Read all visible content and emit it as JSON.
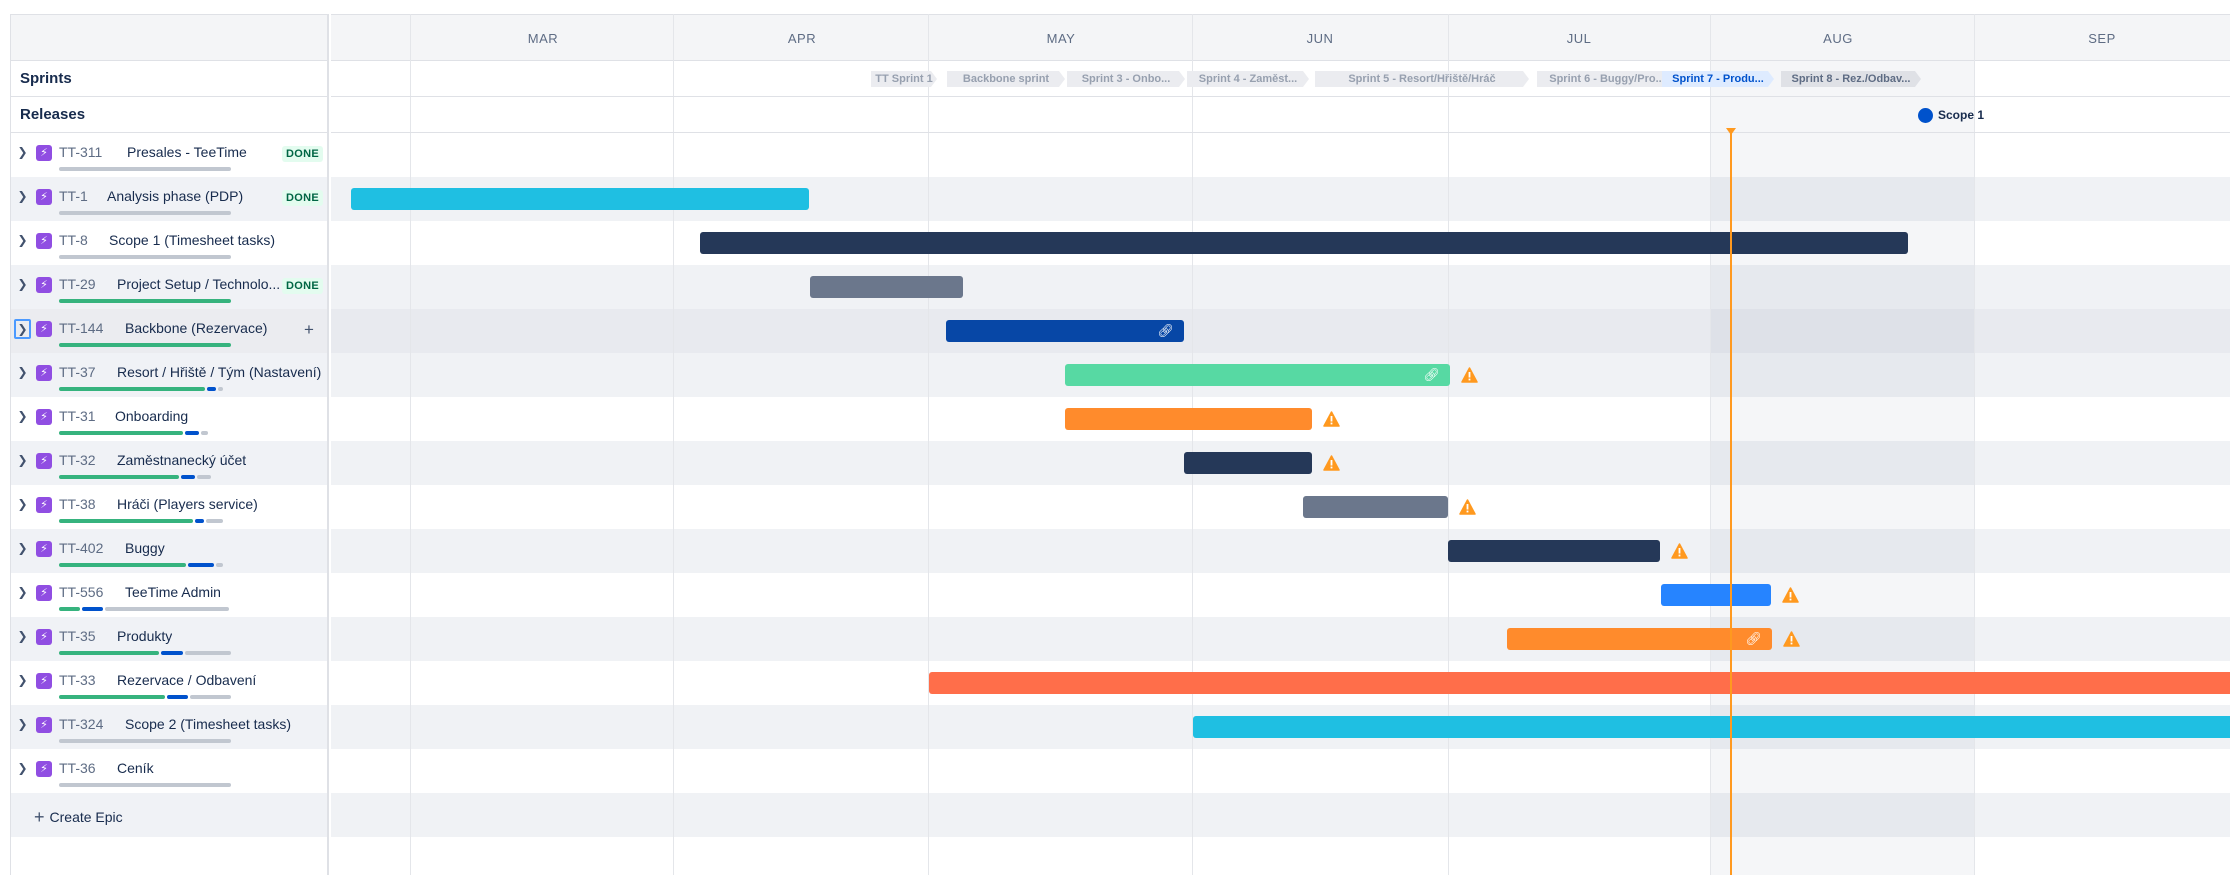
{
  "months": [
    "MAR",
    "APR",
    "MAY",
    "JUN",
    "JUL",
    "AUG",
    "SEP"
  ],
  "sections": {
    "sprints": "Sprints",
    "releases": "Releases"
  },
  "sprints": [
    {
      "label": "TT Sprint 1",
      "state": "closed"
    },
    {
      "label": "Backbone sprint",
      "state": "closed"
    },
    {
      "label": "Sprint 3 - Onbo...",
      "state": "closed"
    },
    {
      "label": "Sprint 4 - Zaměst...",
      "state": "closed"
    },
    {
      "label": "Sprint 5 - Resort/Hřiště/Hráč",
      "state": "closed"
    },
    {
      "label": "Sprint 6 - Buggy/Pro...",
      "state": "closed"
    },
    {
      "label": "Sprint 7 - Produ...",
      "state": "active"
    },
    {
      "label": "Sprint 8 - Rez./Odbav...",
      "state": "future"
    }
  ],
  "release": {
    "label": "Scope 1",
    "color": "#0052cc"
  },
  "epics": [
    {
      "key": "TT-311",
      "title": "Presales - TeeTime",
      "status": "DONE",
      "progress": [
        0,
        0,
        1
      ],
      "bar_color": "",
      "link": false,
      "warning": false
    },
    {
      "key": "TT-1",
      "title": "Analysis phase (PDP)",
      "status": "DONE",
      "progress": [
        0,
        0,
        1
      ],
      "bar_color": "#1fbfe2",
      "link": false,
      "warning": false
    },
    {
      "key": "TT-8",
      "title": "Scope 1 (Timesheet tasks)",
      "status": "",
      "progress": [
        0,
        0,
        1
      ],
      "bar_color": "#253858",
      "link": false,
      "warning": false
    },
    {
      "key": "TT-29",
      "title": "Project Setup / Technolo...",
      "status": "DONE",
      "progress": [
        1,
        0,
        0
      ],
      "bar_color": "#6b778c",
      "link": false,
      "warning": false
    },
    {
      "key": "TT-144",
      "title": "Backbone (Rezervace)",
      "status": "",
      "progress": [
        1,
        0,
        0
      ],
      "bar_color": "#0747a6",
      "link": true,
      "warning": false
    },
    {
      "key": "TT-37",
      "title": "Resort / Hřiště / Tým (Nastavení)",
      "status": "",
      "progress": [
        0.85,
        0.05,
        0.03
      ],
      "bar_color": "#57d9a3",
      "link": true,
      "warning": true
    },
    {
      "key": "TT-31",
      "title": "Onboarding",
      "status": "",
      "progress": [
        0.72,
        0.08,
        0.04
      ],
      "bar_color": "#ff8b2c",
      "link": false,
      "warning": true
    },
    {
      "key": "TT-32",
      "title": "Zaměstnanecký účet",
      "status": "",
      "progress": [
        0.7,
        0.08,
        0.08
      ],
      "bar_color": "#253858",
      "link": false,
      "warning": true
    },
    {
      "key": "TT-38",
      "title": "Hráči (Players service)",
      "status": "",
      "progress": [
        0.78,
        0.05,
        0.1
      ],
      "bar_color": "#6b778c",
      "link": false,
      "warning": true
    },
    {
      "key": "TT-402",
      "title": "Buggy",
      "status": "",
      "progress": [
        0.74,
        0.15,
        0.04
      ],
      "bar_color": "#253858",
      "link": false,
      "warning": true
    },
    {
      "key": "TT-556",
      "title": "TeeTime Admin",
      "status": "",
      "progress": [
        0.12,
        0.12,
        0.72
      ],
      "bar_color": "#2684ff",
      "link": false,
      "warning": true
    },
    {
      "key": "TT-35",
      "title": "Produkty",
      "status": "",
      "progress": [
        0.58,
        0.13,
        0.27
      ],
      "bar_color": "#ff8b2c",
      "link": true,
      "warning": true
    },
    {
      "key": "TT-33",
      "title": "Rezervace / Odbavení",
      "status": "",
      "progress": [
        0.62,
        0.12,
        0.24
      ],
      "bar_color": "#ff6e4a",
      "link": false,
      "warning": false
    },
    {
      "key": "TT-324",
      "title": "Scope 2 (Timesheet tasks)",
      "status": "",
      "progress": [
        0,
        0,
        1
      ],
      "bar_color": "#1fbfe2",
      "link": false,
      "warning": false
    },
    {
      "key": "TT-36",
      "title": "Ceník",
      "status": "",
      "progress": [
        0,
        0,
        1
      ],
      "bar_color": "",
      "link": false,
      "warning": false
    }
  ],
  "create_epic_label": "Create Epic",
  "colors": {
    "today": "#ff991f",
    "done_text": "#006644",
    "epic_icon": "#904ee2",
    "warning": "#ff991f"
  }
}
